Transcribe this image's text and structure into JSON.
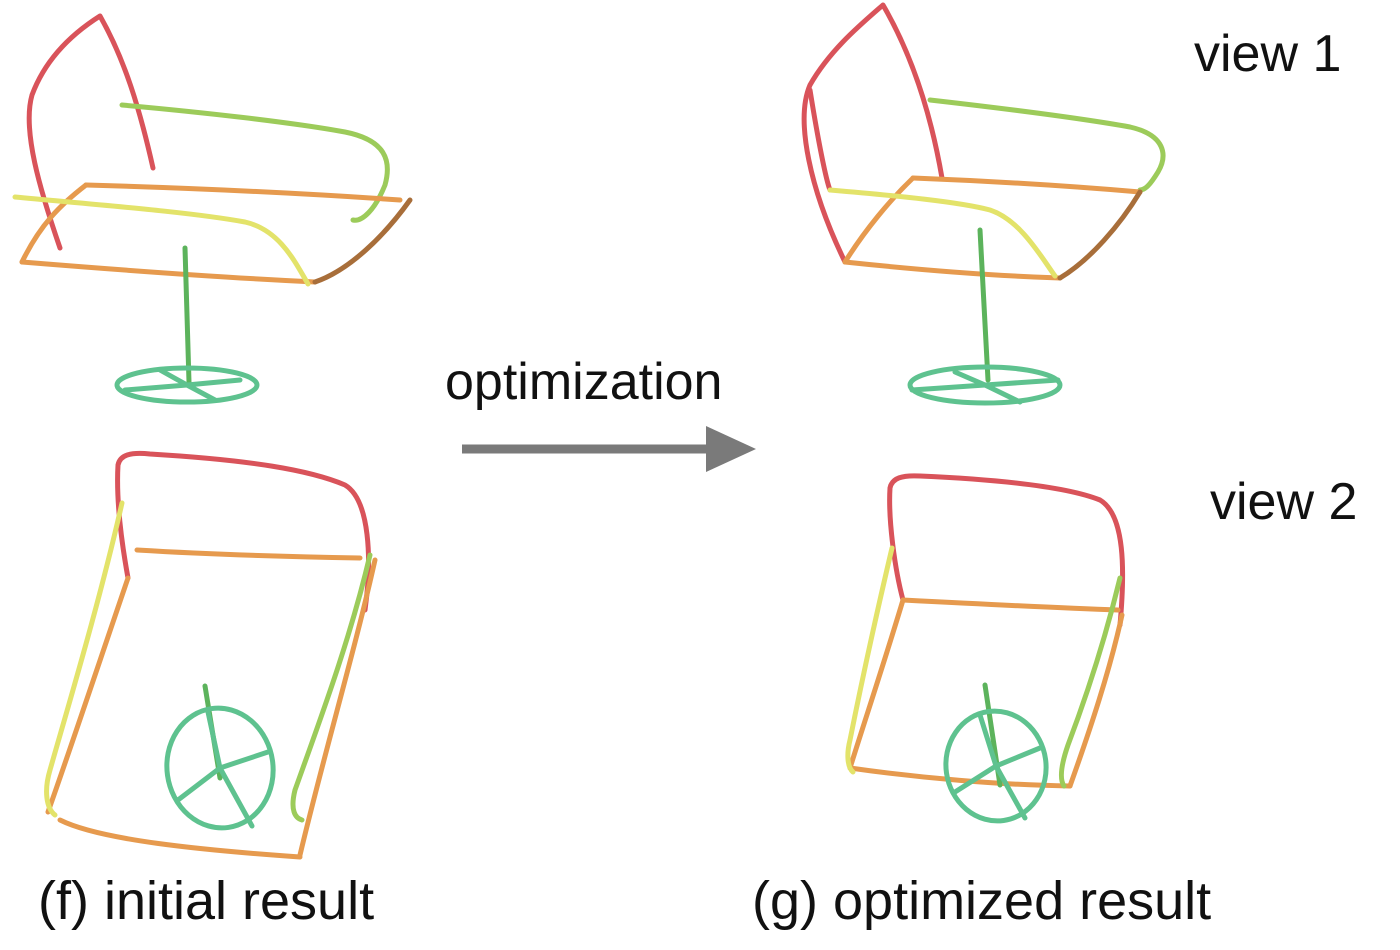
{
  "labels": {
    "view1": "view 1",
    "view2": "view 2",
    "arrow_label": "optimization",
    "caption_initial": "(f) initial result",
    "caption_optimized": "(g) optimized result"
  },
  "colors": {
    "red": "#d9535a",
    "orange": "#e69a4e",
    "yellow": "#e3e36a",
    "light_green": "#9ccb5a",
    "green": "#5cb35c",
    "teal": "#5ec28f",
    "brown": "#a86e3a",
    "arrow": "#7a7a7a"
  }
}
